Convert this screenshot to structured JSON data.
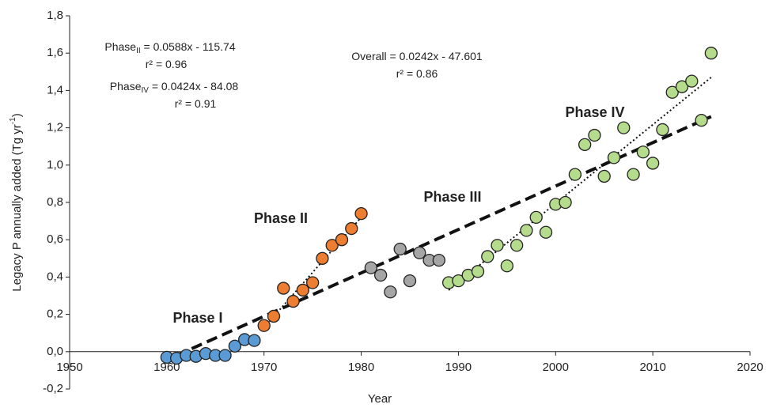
{
  "chart_data": {
    "type": "scatter",
    "x_label": "Year",
    "y_label": [
      "Legacy P annually added (Tg yr",
      "-1",
      ")"
    ],
    "xlim": [
      1950,
      2020
    ],
    "xticks": [
      1950,
      1960,
      1970,
      1980,
      1990,
      2000,
      2010,
      2020
    ],
    "ylim": [
      -0.2,
      1.8
    ],
    "yticks": [
      {
        "value": -0.2,
        "label": "-0,2"
      },
      {
        "value": 0,
        "label": "0,0"
      },
      {
        "value": 0.2,
        "label": "0,2"
      },
      {
        "value": 0.4,
        "label": "0,4"
      },
      {
        "value": 0.6,
        "label": "0,6"
      },
      {
        "value": 0.8,
        "label": "0,8"
      },
      {
        "value": 1.0,
        "label": "1,0"
      },
      {
        "value": 1.2,
        "label": "1,2"
      },
      {
        "value": 1.4,
        "label": "1,4"
      },
      {
        "value": 1.6,
        "label": "1,6"
      },
      {
        "value": 1.8,
        "label": "1,8"
      }
    ],
    "grid": false,
    "series": [
      {
        "name": "Phase I",
        "color": "#5b9bd5",
        "x": [
          1960,
          1961,
          1962,
          1963,
          1964,
          1965,
          1966,
          1967,
          1968,
          1969
        ],
        "values": [
          -0.03,
          -0.035,
          -0.02,
          -0.025,
          -0.01,
          -0.02,
          -0.02,
          0.03,
          0.065,
          0.06
        ]
      },
      {
        "name": "Phase II",
        "color": "#ed7d31",
        "x": [
          1970,
          1971,
          1972,
          1973,
          1974,
          1975,
          1976,
          1977,
          1978,
          1979,
          1980
        ],
        "values": [
          0.14,
          0.19,
          0.34,
          0.27,
          0.33,
          0.37,
          0.5,
          0.57,
          0.6,
          0.66,
          0.74
        ]
      },
      {
        "name": "Phase III",
        "color": "#a5a5a5",
        "x": [
          1981,
          1982,
          1983,
          1984,
          1985,
          1986,
          1987,
          1988
        ],
        "values": [
          0.45,
          0.41,
          0.32,
          0.55,
          0.38,
          0.53,
          0.49,
          0.49
        ]
      },
      {
        "name": "Phase IV",
        "color": "#b4dc8c",
        "x": [
          1989,
          1990,
          1991,
          1992,
          1993,
          1994,
          1995,
          1996,
          1997,
          1998,
          1999,
          2000,
          2001,
          2002,
          2003,
          2004,
          2005,
          2006,
          2007,
          2008,
          2009,
          2010,
          2011,
          2012,
          2013,
          2014,
          2015,
          2016
        ],
        "values": [
          0.37,
          0.38,
          0.41,
          0.43,
          0.51,
          0.57,
          0.46,
          0.57,
          0.65,
          0.72,
          0.64,
          0.79,
          0.8,
          0.95,
          1.11,
          1.16,
          0.94,
          1.04,
          1.2,
          0.95,
          1.07,
          1.01,
          1.19,
          1.39,
          1.42,
          1.45,
          1.24,
          1.6
        ]
      }
    ],
    "trendlines": [
      {
        "style": "dashed",
        "x": [
          1961,
          2016
        ],
        "values": [
          -0.02,
          1.26
        ]
      },
      {
        "style": "dotted",
        "x": [
          1970,
          1980
        ],
        "values": [
          0.13,
          0.72
        ]
      },
      {
        "style": "dotted",
        "x": [
          1989,
          2016
        ],
        "values": [
          0.33,
          1.47
        ]
      }
    ],
    "annotations": [
      [
        "Phase",
        "II",
        " = 0.0588x - 115.74"
      ],
      [
        "r² = 0.96"
      ],
      [
        "Phase",
        "IV",
        " = 0.0424x - 84.08"
      ],
      [
        "r² = 0.91"
      ],
      [
        "Overall = 0.0242x - 47.601"
      ],
      [
        "r² = 0.86"
      ]
    ]
  }
}
